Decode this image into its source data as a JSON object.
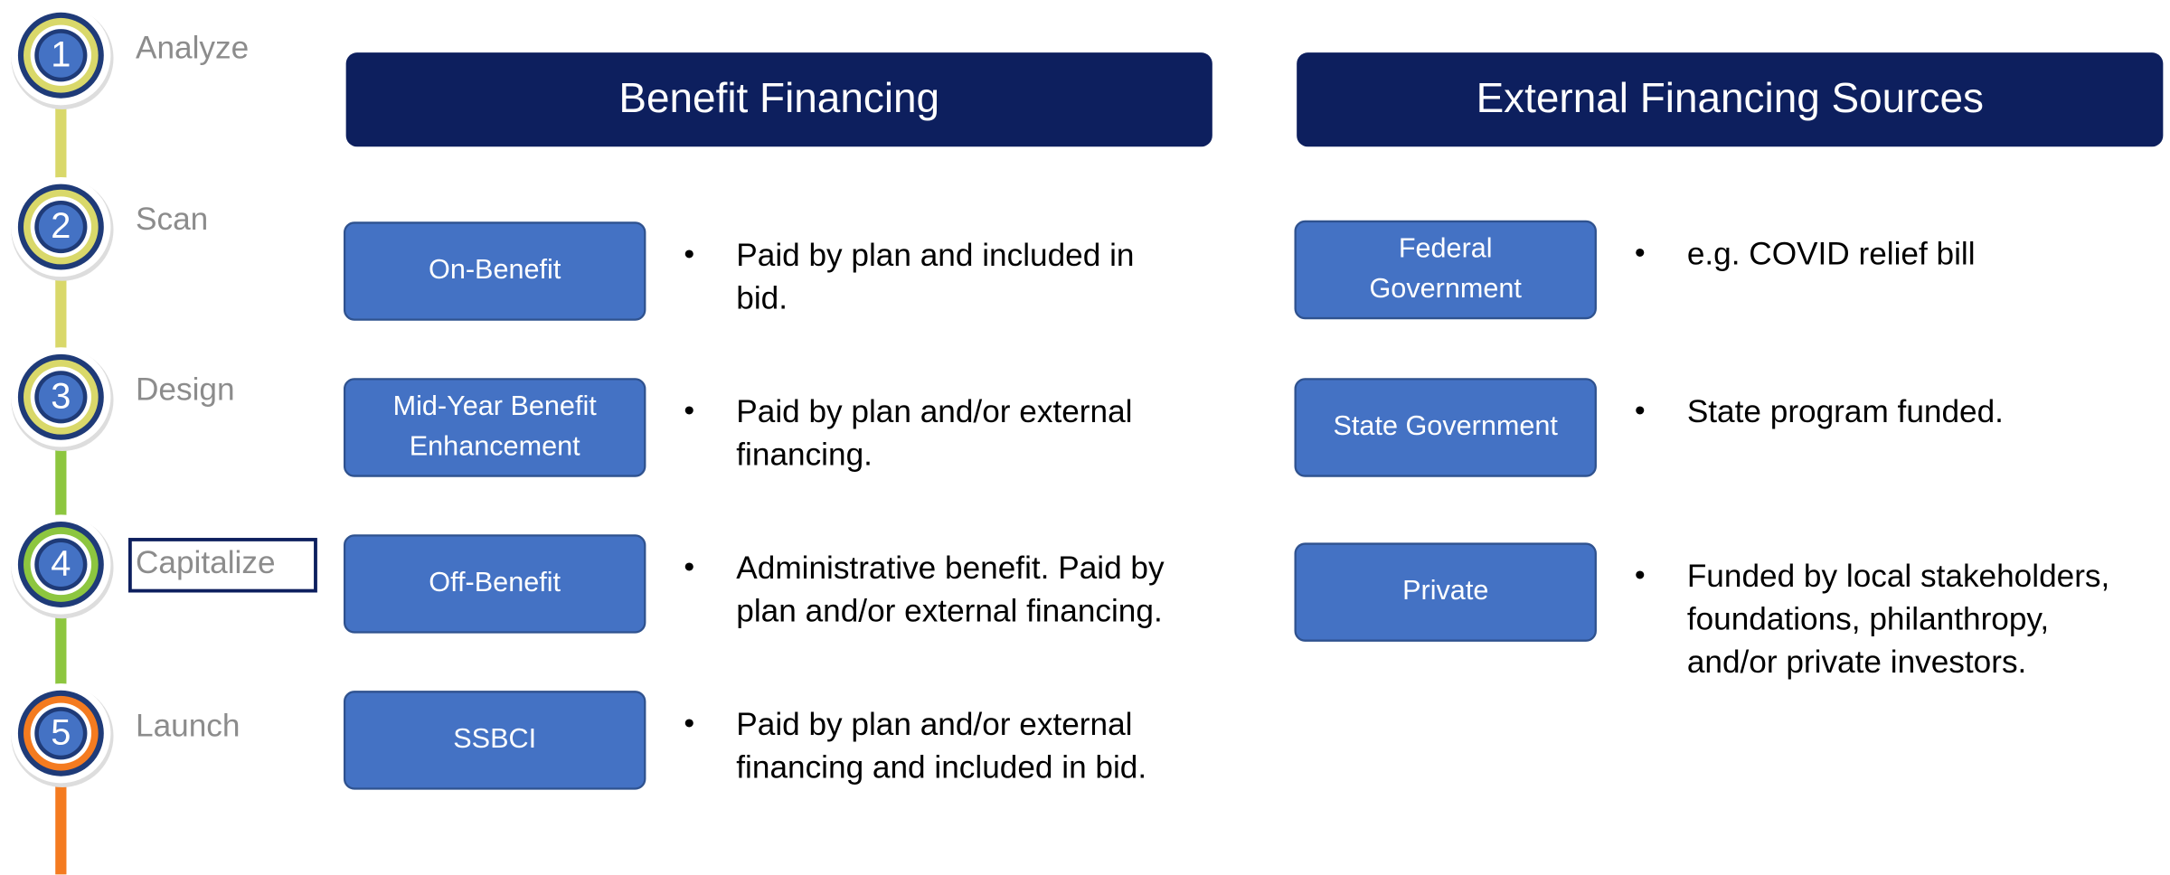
{
  "steps": [
    {
      "number": "1",
      "label": "Analyze",
      "color": "#d9d86a"
    },
    {
      "number": "2",
      "label": "Scan",
      "color": "#d9d86a"
    },
    {
      "number": "3",
      "label": "Design",
      "color": "#d9d86a"
    },
    {
      "number": "4",
      "label": "Capitalize",
      "color": "#8dc63f",
      "highlighted": true
    },
    {
      "number": "5",
      "label": "Launch",
      "color": "#f47b20"
    }
  ],
  "columns": [
    {
      "header": "Benefit Financing",
      "items": [
        {
          "label": [
            "On-Benefit"
          ],
          "text": [
            "Paid by plan and included in",
            "bid."
          ]
        },
        {
          "label": [
            "Mid-Year Benefit",
            "Enhancement"
          ],
          "text": [
            "Paid by plan and/or external",
            "financing."
          ]
        },
        {
          "label": [
            "Off-Benefit"
          ],
          "text": [
            "Administrative benefit. Paid by",
            "plan and/or external financing."
          ]
        },
        {
          "label": [
            "SSBCI"
          ],
          "text": [
            "Paid by plan and/or external",
            "financing and included in bid."
          ]
        }
      ]
    },
    {
      "header": "External Financing Sources",
      "items": [
        {
          "label": [
            "Federal",
            "Government"
          ],
          "text": [
            "e.g. COVID relief bill"
          ]
        },
        {
          "label": [
            "State Government"
          ],
          "text": [
            "State program funded."
          ]
        },
        {
          "label": [
            "Private"
          ],
          "text": [
            "Funded by local stakeholders,",
            "foundations, philanthropy,",
            "and/or private investors."
          ]
        }
      ]
    }
  ]
}
